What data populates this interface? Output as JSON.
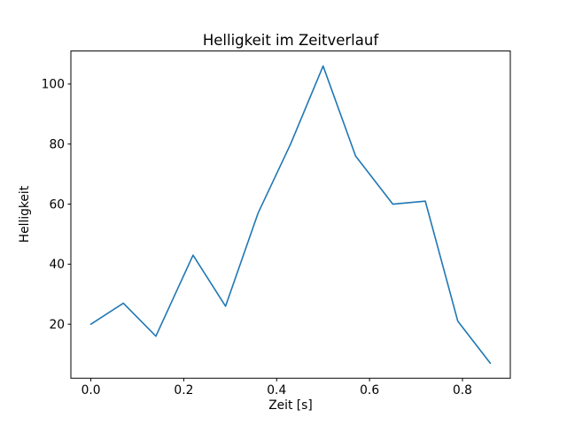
{
  "chart_data": {
    "type": "line",
    "title": "Helligkeit im Zeitverlauf",
    "xlabel": "Zeit [s]",
    "ylabel": "Helligkeit",
    "x": [
      0.0,
      0.07,
      0.14,
      0.22,
      0.29,
      0.36,
      0.43,
      0.5,
      0.57,
      0.65,
      0.72,
      0.79,
      0.86
    ],
    "y": [
      20,
      27,
      16,
      43,
      26,
      57,
      80,
      106,
      76,
      60,
      61,
      21,
      7
    ],
    "xlim": [
      -0.043,
      0.903
    ],
    "ylim": [
      2.0,
      111.0
    ],
    "xticks": [
      0.0,
      0.2,
      0.4,
      0.6,
      0.8
    ],
    "yticks": [
      20,
      40,
      60,
      80,
      100
    ],
    "x_tick_decimals": 1,
    "line_color": "#1f77b4",
    "spine_color": "#000000",
    "text_color": "#000000",
    "background_color": "#ffffff",
    "grid": false,
    "legend_position": "none"
  }
}
